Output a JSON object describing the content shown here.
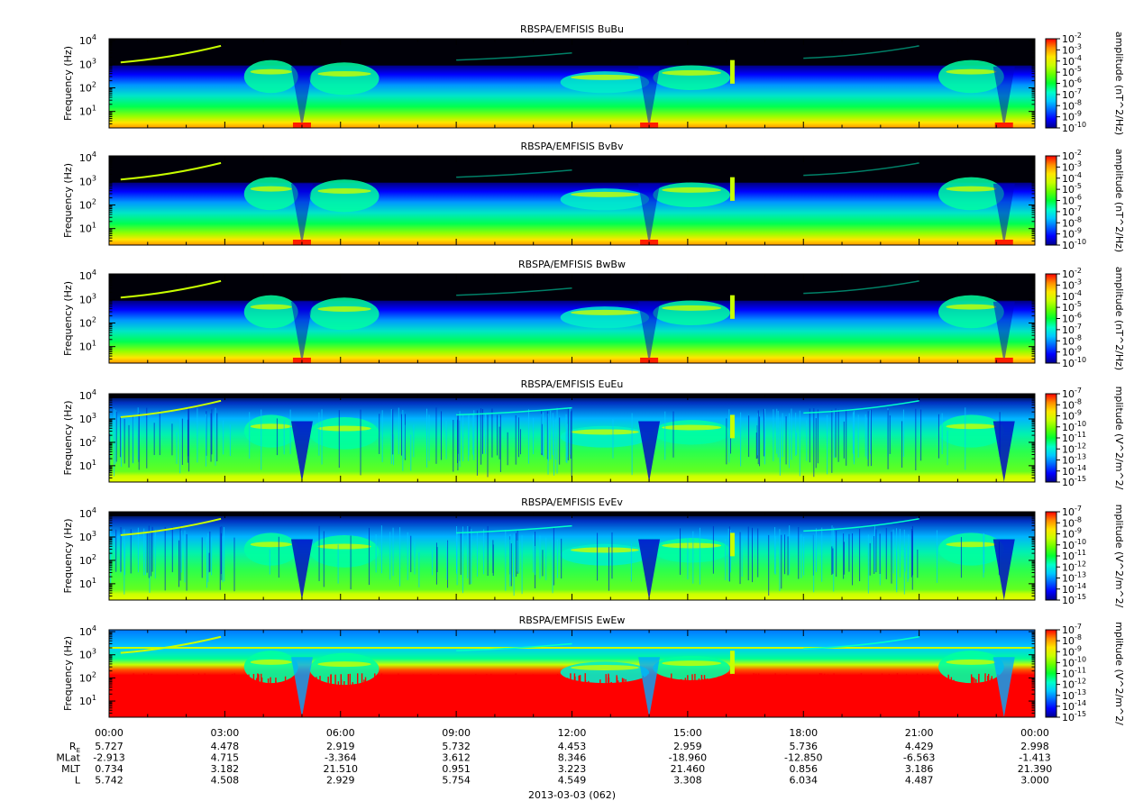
{
  "colors": {
    "background": "#ffffff",
    "plot_background": "#000000",
    "colormap": [
      "#00008c",
      "#0000ff",
      "#0064ff",
      "#00c8ff",
      "#00ffc8",
      "#00ff32",
      "#64ff00",
      "#c8ff00",
      "#ffe600",
      "#ff8c00",
      "#ff0000"
    ]
  },
  "chart_data": [
    {
      "type": "heatmap",
      "title": "RBSPA/EMFISIS  BuBu",
      "ylabel": "Frequency (Hz)",
      "ylim": [
        2,
        12000
      ],
      "yscale": "log",
      "yticks": [
        {
          "base": "10",
          "exp": "1"
        },
        {
          "base": "10",
          "exp": "2"
        },
        {
          "base": "10",
          "exp": "3"
        },
        {
          "base": "10",
          "exp": "4"
        }
      ],
      "colorbar": {
        "label": "amplitude (nT^2/Hz)",
        "ticks": [
          {
            "base": "10",
            "exp": "-2"
          },
          {
            "base": "10",
            "exp": "-3"
          },
          {
            "base": "10",
            "exp": "-4"
          },
          {
            "base": "10",
            "exp": "-5"
          },
          {
            "base": "10",
            "exp": "-6"
          },
          {
            "base": "10",
            "exp": "-7"
          },
          {
            "base": "10",
            "exp": "-8"
          },
          {
            "base": "10",
            "exp": "-9"
          },
          {
            "base": "10",
            "exp": "-10"
          }
        ]
      }
    },
    {
      "type": "heatmap",
      "title": "RBSPA/EMFISIS  BvBv",
      "ylabel": "Frequency (Hz)",
      "ylim": [
        2,
        12000
      ],
      "yscale": "log",
      "yticks": [
        {
          "base": "10",
          "exp": "1"
        },
        {
          "base": "10",
          "exp": "2"
        },
        {
          "base": "10",
          "exp": "3"
        },
        {
          "base": "10",
          "exp": "4"
        }
      ],
      "colorbar": {
        "label": "amplitude (nT^2/Hz)",
        "ticks": [
          {
            "base": "10",
            "exp": "-2"
          },
          {
            "base": "10",
            "exp": "-3"
          },
          {
            "base": "10",
            "exp": "-4"
          },
          {
            "base": "10",
            "exp": "-5"
          },
          {
            "base": "10",
            "exp": "-6"
          },
          {
            "base": "10",
            "exp": "-7"
          },
          {
            "base": "10",
            "exp": "-8"
          },
          {
            "base": "10",
            "exp": "-9"
          },
          {
            "base": "10",
            "exp": "-10"
          }
        ]
      }
    },
    {
      "type": "heatmap",
      "title": "RBSPA/EMFISIS  BwBw",
      "ylabel": "Frequency (Hz)",
      "ylim": [
        2,
        12000
      ],
      "yscale": "log",
      "yticks": [
        {
          "base": "10",
          "exp": "1"
        },
        {
          "base": "10",
          "exp": "2"
        },
        {
          "base": "10",
          "exp": "3"
        },
        {
          "base": "10",
          "exp": "4"
        }
      ],
      "colorbar": {
        "label": "amplitude (nT^2/Hz)",
        "ticks": [
          {
            "base": "10",
            "exp": "-2"
          },
          {
            "base": "10",
            "exp": "-3"
          },
          {
            "base": "10",
            "exp": "-4"
          },
          {
            "base": "10",
            "exp": "-5"
          },
          {
            "base": "10",
            "exp": "-6"
          },
          {
            "base": "10",
            "exp": "-7"
          },
          {
            "base": "10",
            "exp": "-8"
          },
          {
            "base": "10",
            "exp": "-9"
          },
          {
            "base": "10",
            "exp": "-10"
          }
        ]
      }
    },
    {
      "type": "heatmap",
      "title": "RBSPA/EMFISIS  EuEu",
      "ylabel": "Frequency (Hz)",
      "ylim": [
        2,
        12000
      ],
      "yscale": "log",
      "yticks": [
        {
          "base": "10",
          "exp": "1"
        },
        {
          "base": "10",
          "exp": "2"
        },
        {
          "base": "10",
          "exp": "3"
        },
        {
          "base": "10",
          "exp": "4"
        }
      ],
      "colorbar": {
        "label": "mplitude (V^2/m^2/",
        "ticks": [
          {
            "base": "10",
            "exp": "-7"
          },
          {
            "base": "10",
            "exp": "-8"
          },
          {
            "base": "10",
            "exp": "-9"
          },
          {
            "base": "10",
            "exp": "-10"
          },
          {
            "base": "10",
            "exp": "-11"
          },
          {
            "base": "10",
            "exp": "-12"
          },
          {
            "base": "10",
            "exp": "-13"
          },
          {
            "base": "10",
            "exp": "-14"
          },
          {
            "base": "10",
            "exp": "-15"
          }
        ]
      }
    },
    {
      "type": "heatmap",
      "title": "RBSPA/EMFISIS  EvEv",
      "ylabel": "Frequency (Hz)",
      "ylim": [
        2,
        12000
      ],
      "yscale": "log",
      "yticks": [
        {
          "base": "10",
          "exp": "1"
        },
        {
          "base": "10",
          "exp": "2"
        },
        {
          "base": "10",
          "exp": "3"
        },
        {
          "base": "10",
          "exp": "4"
        }
      ],
      "colorbar": {
        "label": "mplitude (V^2/m^2/",
        "ticks": [
          {
            "base": "10",
            "exp": "-7"
          },
          {
            "base": "10",
            "exp": "-8"
          },
          {
            "base": "10",
            "exp": "-9"
          },
          {
            "base": "10",
            "exp": "-10"
          },
          {
            "base": "10",
            "exp": "-11"
          },
          {
            "base": "10",
            "exp": "-12"
          },
          {
            "base": "10",
            "exp": "-13"
          },
          {
            "base": "10",
            "exp": "-14"
          },
          {
            "base": "10",
            "exp": "-15"
          }
        ]
      }
    },
    {
      "type": "heatmap",
      "title": "RBSPA/EMFISIS  EwEw",
      "ylabel": "Frequency (Hz)",
      "ylim": [
        2,
        12000
      ],
      "yscale": "log",
      "yticks": [
        {
          "base": "10",
          "exp": "1"
        },
        {
          "base": "10",
          "exp": "2"
        },
        {
          "base": "10",
          "exp": "3"
        },
        {
          "base": "10",
          "exp": "4"
        }
      ],
      "colorbar": {
        "label": "mplitude (V^2/m^2/",
        "ticks": [
          {
            "base": "10",
            "exp": "-7"
          },
          {
            "base": "10",
            "exp": "-8"
          },
          {
            "base": "10",
            "exp": "-9"
          },
          {
            "base": "10",
            "exp": "-10"
          },
          {
            "base": "10",
            "exp": "-11"
          },
          {
            "base": "10",
            "exp": "-12"
          },
          {
            "base": "10",
            "exp": "-13"
          },
          {
            "base": "10",
            "exp": "-14"
          },
          {
            "base": "10",
            "exp": "-15"
          }
        ]
      }
    }
  ],
  "time_axis": {
    "ticks": [
      "00:00",
      "03:00",
      "06:00",
      "09:00",
      "12:00",
      "15:00",
      "18:00",
      "21:00",
      "00:00"
    ],
    "date_label": "2013-03-03 (062)"
  },
  "ephemeris": [
    {
      "label": "R",
      "label_sub": "E",
      "values": [
        "5.727",
        "4.478",
        "2.919",
        "5.732",
        "4.453",
        "2.959",
        "5.736",
        "4.429",
        "2.998"
      ]
    },
    {
      "label": "MLat",
      "label_sub": "",
      "values": [
        "-2.913",
        "4.715",
        "-3.364",
        "3.612",
        "8.346",
        "-18.960",
        "-12.850",
        "-6.563",
        "-1.413"
      ]
    },
    {
      "label": "MLT",
      "label_sub": "",
      "values": [
        "0.734",
        "3.182",
        "21.510",
        "0.951",
        "3.223",
        "21.460",
        "0.856",
        "3.186",
        "21.390"
      ]
    },
    {
      "label": "L",
      "label_sub": "",
      "values": [
        "5.742",
        "4.508",
        "2.929",
        "5.754",
        "4.549",
        "3.308",
        "6.034",
        "4.487",
        "3.000"
      ]
    }
  ]
}
